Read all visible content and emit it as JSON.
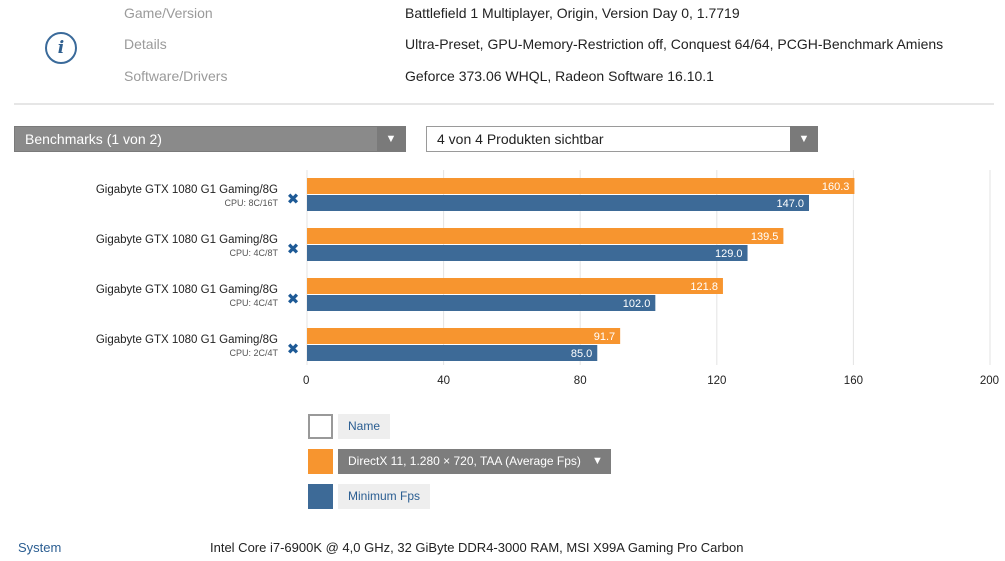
{
  "info": {
    "rows": [
      {
        "key": "Game/Version",
        "value": "Battlefield 1 Multiplayer, Origin, Version Day 0, 1.7719"
      },
      {
        "key": "Details",
        "value": "Ultra-Preset, GPU-Memory-Restriction off, Conquest 64/64, PCGH-Benchmark Amiens"
      },
      {
        "key": "Software/Drivers",
        "value": "Geforce 373.06 WHQL, Radeon Software 16.10.1"
      }
    ],
    "icon_glyph": "i"
  },
  "controls": {
    "benchmark_select": "Benchmarks (1 von 2)",
    "product_select": "4 von 4 Produkten sichtbar",
    "arrow": "▼"
  },
  "chart_data": {
    "type": "bar",
    "orientation": "horizontal",
    "title": "",
    "xlim": [
      0,
      200
    ],
    "xticks": [
      0,
      40,
      80,
      120,
      160,
      200
    ],
    "grid": true,
    "categories": [
      {
        "name": "Gigabyte GTX 1080 G1 Gaming/8G",
        "cpu": "CPU: 8C/16T"
      },
      {
        "name": "Gigabyte GTX 1080 G1 Gaming/8G",
        "cpu": "CPU: 4C/8T"
      },
      {
        "name": "Gigabyte GTX 1080 G1 Gaming/8G",
        "cpu": "CPU: 4C/4T"
      },
      {
        "name": "Gigabyte GTX 1080 G1 Gaming/8G",
        "cpu": "CPU: 2C/4T"
      }
    ],
    "series": [
      {
        "name": "DirectX 11, 1.280 × 720, TAA (Average Fps)",
        "color": "#f7952f",
        "values": [
          160.3,
          139.5,
          121.8,
          91.7
        ],
        "labels": [
          "160.3",
          "139.5",
          "121.8",
          "91.7"
        ]
      },
      {
        "name": "Minimum Fps",
        "color": "#3d6a97",
        "values": [
          147.0,
          129.0,
          102.0,
          85.0
        ],
        "labels": [
          "147.0",
          "129.0",
          "102.0",
          "85.0"
        ]
      }
    ],
    "remove_glyph": "✖"
  },
  "legend": {
    "name_label": "Name",
    "avg_label": "DirectX 11, 1.280 × 720, TAA (Average Fps)",
    "min_label": "Minimum Fps",
    "arrow": "▼"
  },
  "system": {
    "key": "System",
    "value": "Intel Core i7-6900K @ 4,0 GHz, 32 GiByte DDR4-3000 RAM, MSI X99A Gaming Pro Carbon"
  }
}
